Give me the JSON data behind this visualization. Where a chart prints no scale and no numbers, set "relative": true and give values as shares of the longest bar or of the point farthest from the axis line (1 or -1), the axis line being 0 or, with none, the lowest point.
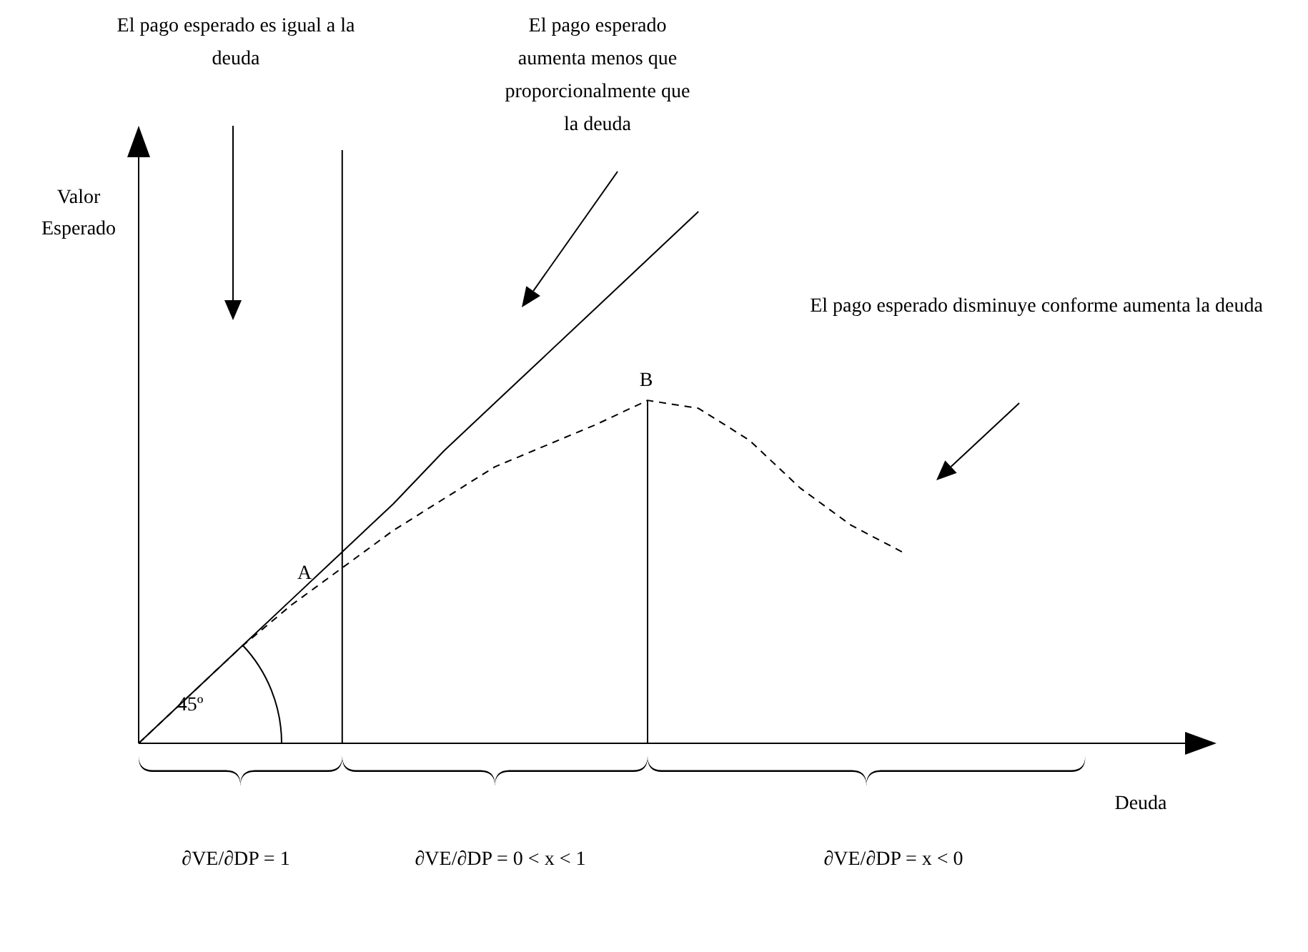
{
  "chart_data": {
    "type": "line",
    "relative": true,
    "xlabel": "Deuda",
    "ylabel": "Valor Esperado",
    "categories": [
      null,
      null,
      null,
      null,
      null,
      null,
      null,
      null,
      null,
      null,
      null,
      null,
      null,
      null,
      null,
      null,
      null,
      null,
      null,
      null,
      null
    ],
    "series": [
      {
        "color": "#000000",
        "line_style": "solid",
        "values": [
          0,
          0.09,
          0.18,
          0.27,
          0.36,
          0.45,
          0.55,
          0.64,
          0.73,
          0.82,
          0.91,
          1,
          null,
          null,
          null,
          null,
          null,
          null,
          null,
          null,
          null
        ]
      },
      {
        "color": "#000000",
        "line_style": "dashed",
        "values": [
          0,
          0.09,
          0.18,
          0.26,
          0.33,
          0.4,
          0.46,
          0.52,
          0.56,
          0.6,
          0.645,
          0.63,
          0.57,
          0.48,
          0.41,
          0.36,
          null,
          null,
          null,
          null,
          null
        ]
      }
    ],
    "annotations": [
      "El pago esperado es igual a la deuda",
      "El pago esperado aumenta menos que proporcionalmente que la deuda",
      "El pago esperado disminuye conforme aumenta la deuda",
      "A",
      "45º",
      "∂VE/∂DP = 1",
      "∂VE/∂DP = 0 < x < 1",
      "∂VE/∂DP = x < 0",
      "B"
    ],
    "grid": false,
    "marker": "none"
  }
}
